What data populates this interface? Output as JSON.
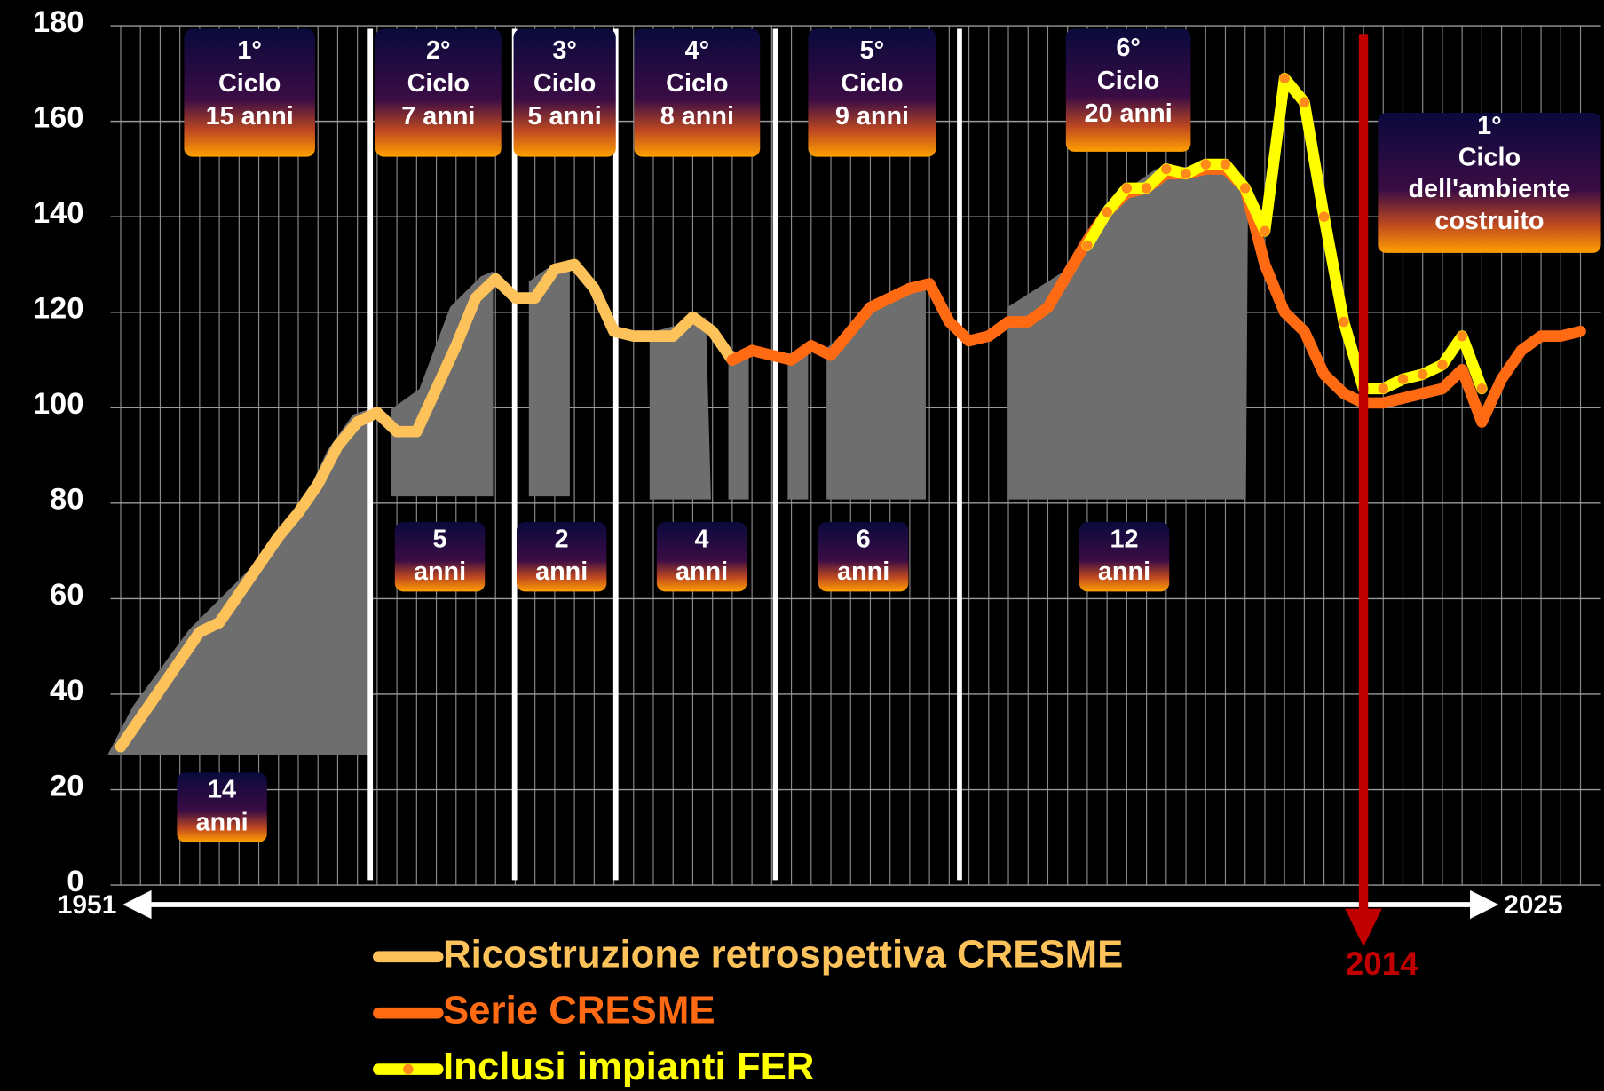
{
  "chart_data": {
    "type": "line",
    "x": [
      1951,
      1952,
      1953,
      1954,
      1955,
      1956,
      1957,
      1958,
      1959,
      1960,
      1961,
      1962,
      1963,
      1964,
      1965,
      1966,
      1967,
      1968,
      1969,
      1970,
      1971,
      1972,
      1973,
      1974,
      1975,
      1976,
      1977,
      1978,
      1979,
      1980,
      1981,
      1982,
      1983,
      1984,
      1985,
      1986,
      1987,
      1988,
      1989,
      1990,
      1991,
      1992,
      1993,
      1994,
      1995,
      1996,
      1997,
      1998,
      1999,
      2000,
      2001,
      2002,
      2003,
      2004,
      2005,
      2006,
      2007,
      2008,
      2009,
      2010,
      2011,
      2012,
      2013,
      2014,
      2015,
      2016,
      2017,
      2018,
      2019,
      2020,
      2021,
      2022,
      2023,
      2024,
      2025
    ],
    "xlim": [
      1951,
      2025
    ],
    "xticks": [
      1951,
      2025
    ],
    "ylim": [
      0,
      180
    ],
    "yticks": [
      0,
      20,
      40,
      60,
      80,
      100,
      120,
      140,
      160,
      180
    ],
    "grid": true,
    "series": [
      {
        "name": "Ricostruzione retrospettiva CRESME",
        "color": "#fdc35a",
        "values": [
          29,
          35,
          41,
          47,
          53,
          55,
          61,
          67,
          73,
          78,
          84,
          92,
          97,
          99,
          95,
          95,
          104,
          113,
          123,
          127,
          123,
          123,
          129,
          130,
          125,
          116,
          115,
          115,
          115,
          119,
          116,
          110,
          null,
          null,
          null,
          null,
          null,
          null,
          null,
          null,
          null,
          null,
          null,
          null,
          null,
          null,
          null,
          null,
          null,
          null,
          null,
          null,
          null,
          null,
          null,
          null,
          null,
          null,
          null,
          null,
          null,
          null,
          null,
          null,
          null,
          null,
          null,
          null,
          null,
          null,
          null,
          null,
          null,
          null,
          null
        ]
      },
      {
        "name": "Serie CRESME",
        "color": "#ff6a13",
        "values": [
          null,
          null,
          null,
          null,
          null,
          null,
          null,
          null,
          null,
          null,
          null,
          null,
          null,
          null,
          null,
          null,
          null,
          null,
          null,
          null,
          null,
          null,
          null,
          null,
          null,
          null,
          null,
          null,
          null,
          null,
          null,
          110,
          112,
          111,
          110,
          113,
          111,
          116,
          121,
          123,
          125,
          126,
          118,
          114,
          115,
          118,
          118,
          121,
          128,
          135,
          141,
          145,
          146,
          149,
          149,
          150,
          150,
          146,
          130,
          120,
          116,
          107,
          103,
          101,
          101,
          102,
          103,
          104,
          108,
          97,
          106,
          112,
          115,
          115,
          116
        ]
      },
      {
        "name": "Inclusi impianti FER",
        "color": "#ffff00",
        "marker_color": "#ff8c1a",
        "values": [
          null,
          null,
          null,
          null,
          null,
          null,
          null,
          null,
          null,
          null,
          null,
          null,
          null,
          null,
          null,
          null,
          null,
          null,
          null,
          null,
          null,
          null,
          null,
          null,
          null,
          null,
          null,
          null,
          null,
          null,
          null,
          null,
          null,
          null,
          null,
          null,
          null,
          null,
          null,
          null,
          null,
          null,
          null,
          null,
          null,
          null,
          null,
          null,
          null,
          134,
          141,
          146,
          146,
          150,
          149,
          151,
          151,
          146,
          137,
          169,
          164,
          140,
          118,
          104,
          104,
          106,
          107,
          109,
          115,
          104,
          null,
          null,
          null,
          null,
          null
        ]
      }
    ],
    "marker": 2014,
    "marker_color": "#c00000",
    "annotations": [
      {
        "lines": [
          "1°",
          "Ciclo",
          "15 anni"
        ]
      },
      {
        "lines": [
          "2°",
          "Ciclo",
          "7 anni"
        ]
      },
      {
        "lines": [
          "3°",
          "Ciclo",
          "5 anni"
        ]
      },
      {
        "lines": [
          "4°",
          "Ciclo",
          "8 anni"
        ]
      },
      {
        "lines": [
          "5°",
          "Ciclo",
          "9 anni"
        ]
      },
      {
        "lines": [
          "6°",
          "Ciclo",
          "20 anni"
        ]
      },
      {
        "lines": [
          "1°",
          "Ciclo",
          "dell'ambiente",
          "costruito"
        ]
      },
      {
        "lines": [
          "14",
          "anni"
        ]
      },
      {
        "lines": [
          "5",
          "anni"
        ]
      },
      {
        "lines": [
          "2",
          "anni"
        ]
      },
      {
        "lines": [
          "4",
          "anni"
        ]
      },
      {
        "lines": [
          "6",
          "anni"
        ]
      },
      {
        "lines": [
          "12",
          "anni"
        ]
      }
    ]
  }
}
